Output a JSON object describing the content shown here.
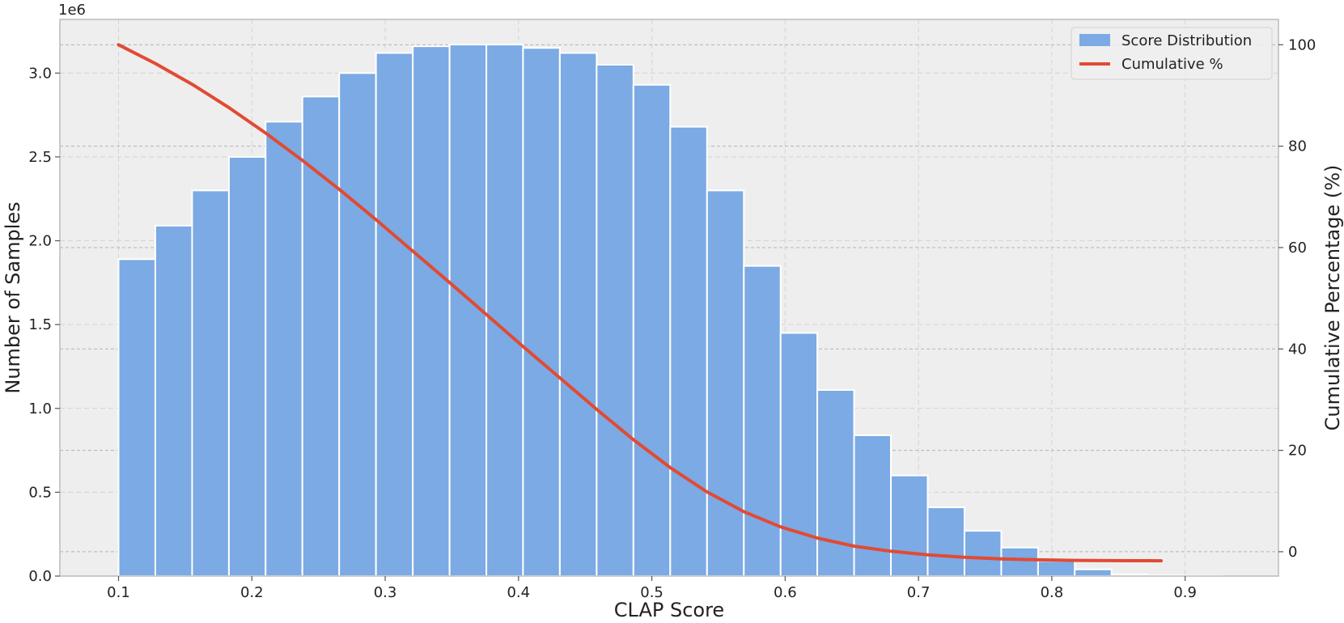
{
  "chart_data": {
    "type": "bar",
    "title": "",
    "xlabel": "CLAP Score",
    "ylabel": "Number of Samples",
    "y2label": "Cumulative Percentage (%)",
    "y_offset_label": "1e6",
    "xlim": [
      0.056,
      0.97
    ],
    "ylim": [
      0,
      3.32
    ],
    "y2lim": [
      -4.8,
      105
    ],
    "grid": true,
    "legend_position": "top-right",
    "bar_color": "#7baae4",
    "line_color": "#e24a33",
    "x_ticks": [
      0.1,
      0.2,
      0.3,
      0.4,
      0.5,
      0.6,
      0.7,
      0.8,
      0.9
    ],
    "x_tick_labels": [
      "0.1",
      "0.2",
      "0.3",
      "0.4",
      "0.5",
      "0.6",
      "0.7",
      "0.8",
      "0.9"
    ],
    "y_ticks": [
      0,
      0.5,
      1.0,
      1.5,
      2.0,
      2.5,
      3.0
    ],
    "y_tick_labels": [
      "0.0",
      "0.5",
      "1.0",
      "1.5",
      "2.0",
      "2.5",
      "3.0"
    ],
    "y2_ticks": [
      0,
      20,
      40,
      60,
      80,
      100
    ],
    "y2_tick_labels": [
      "0",
      "20",
      "40",
      "60",
      "80",
      "100"
    ],
    "series": [
      {
        "name": "Score Distribution",
        "kind": "bar",
        "bin_edges": [
          0.1,
          0.1276,
          0.1552,
          0.1828,
          0.2103,
          0.2379,
          0.2655,
          0.2931,
          0.3207,
          0.3483,
          0.3759,
          0.4034,
          0.431,
          0.4586,
          0.4862,
          0.5138,
          0.5414,
          0.569,
          0.5966,
          0.6241,
          0.6517,
          0.6793,
          0.7069,
          0.7345,
          0.7621,
          0.7897,
          0.8172,
          0.8448,
          0.8724,
          0.9,
          0.9276
        ],
        "values": [
          1.89,
          2.09,
          2.3,
          2.5,
          2.71,
          2.86,
          3.0,
          3.12,
          3.16,
          3.17,
          3.17,
          3.15,
          3.12,
          3.05,
          2.93,
          2.68,
          2.3,
          1.85,
          1.45,
          1.11,
          0.84,
          0.6,
          0.41,
          0.27,
          0.17,
          0.09,
          0.04,
          0.01,
          0.004,
          0.002
        ]
      },
      {
        "name": "Cumulative %",
        "kind": "line",
        "x": [
          0.1,
          0.1276,
          0.1552,
          0.1828,
          0.2103,
          0.2379,
          0.2655,
          0.2931,
          0.3207,
          0.3483,
          0.3759,
          0.4034,
          0.431,
          0.4586,
          0.4862,
          0.5138,
          0.5414,
          0.569,
          0.5966,
          0.6241,
          0.6517,
          0.6793,
          0.7069,
          0.7345,
          0.7621,
          0.7897,
          0.8172,
          0.8448,
          0.8724,
          0.882
        ],
        "values": [
          100,
          96.3,
          92.2,
          87.6,
          82.6,
          77.2,
          71.5,
          65.5,
          59.3,
          53.1,
          46.8,
          40.5,
          34.3,
          28.1,
          22.1,
          16.6,
          11.8,
          7.9,
          4.9,
          2.7,
          1.1,
          0.1,
          -0.6,
          -1.1,
          -1.4,
          -1.6,
          -1.7,
          -1.75,
          -1.77,
          -1.78
        ]
      }
    ]
  }
}
